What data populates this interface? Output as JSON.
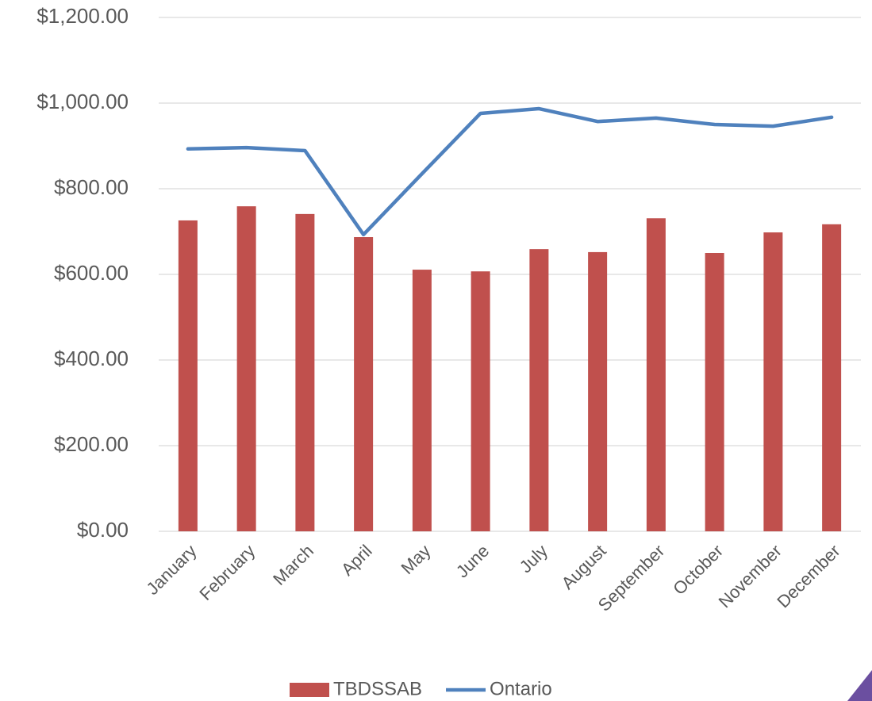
{
  "chart_data": {
    "type": "bar",
    "categories": [
      "January",
      "February",
      "March",
      "April",
      "May",
      "June",
      "July",
      "August",
      "September",
      "October",
      "November",
      "December"
    ],
    "series": [
      {
        "name": "TBDSSAB",
        "type": "bar",
        "color": "#c0504d",
        "values": [
          726,
          759,
          741,
          687,
          611,
          607,
          659,
          652,
          731,
          650,
          698,
          717
        ]
      },
      {
        "name": "Ontario",
        "type": "line",
        "color": "#4f81bd",
        "values": [
          893,
          896,
          889,
          693,
          835,
          976,
          987,
          957,
          965,
          950,
          946,
          967
        ]
      }
    ],
    "ylim": [
      0,
      1200
    ],
    "yticks": [
      {
        "value": 0,
        "label": "$0.00"
      },
      {
        "value": 200,
        "label": "$200.00"
      },
      {
        "value": 400,
        "label": "$400.00"
      },
      {
        "value": 600,
        "label": "$600.00"
      },
      {
        "value": 800,
        "label": "$800.00"
      },
      {
        "value": 1000,
        "label": "$1,000.00"
      },
      {
        "value": 1200,
        "label": "$1,200.00"
      }
    ],
    "grid": true,
    "legend": "bottom"
  }
}
